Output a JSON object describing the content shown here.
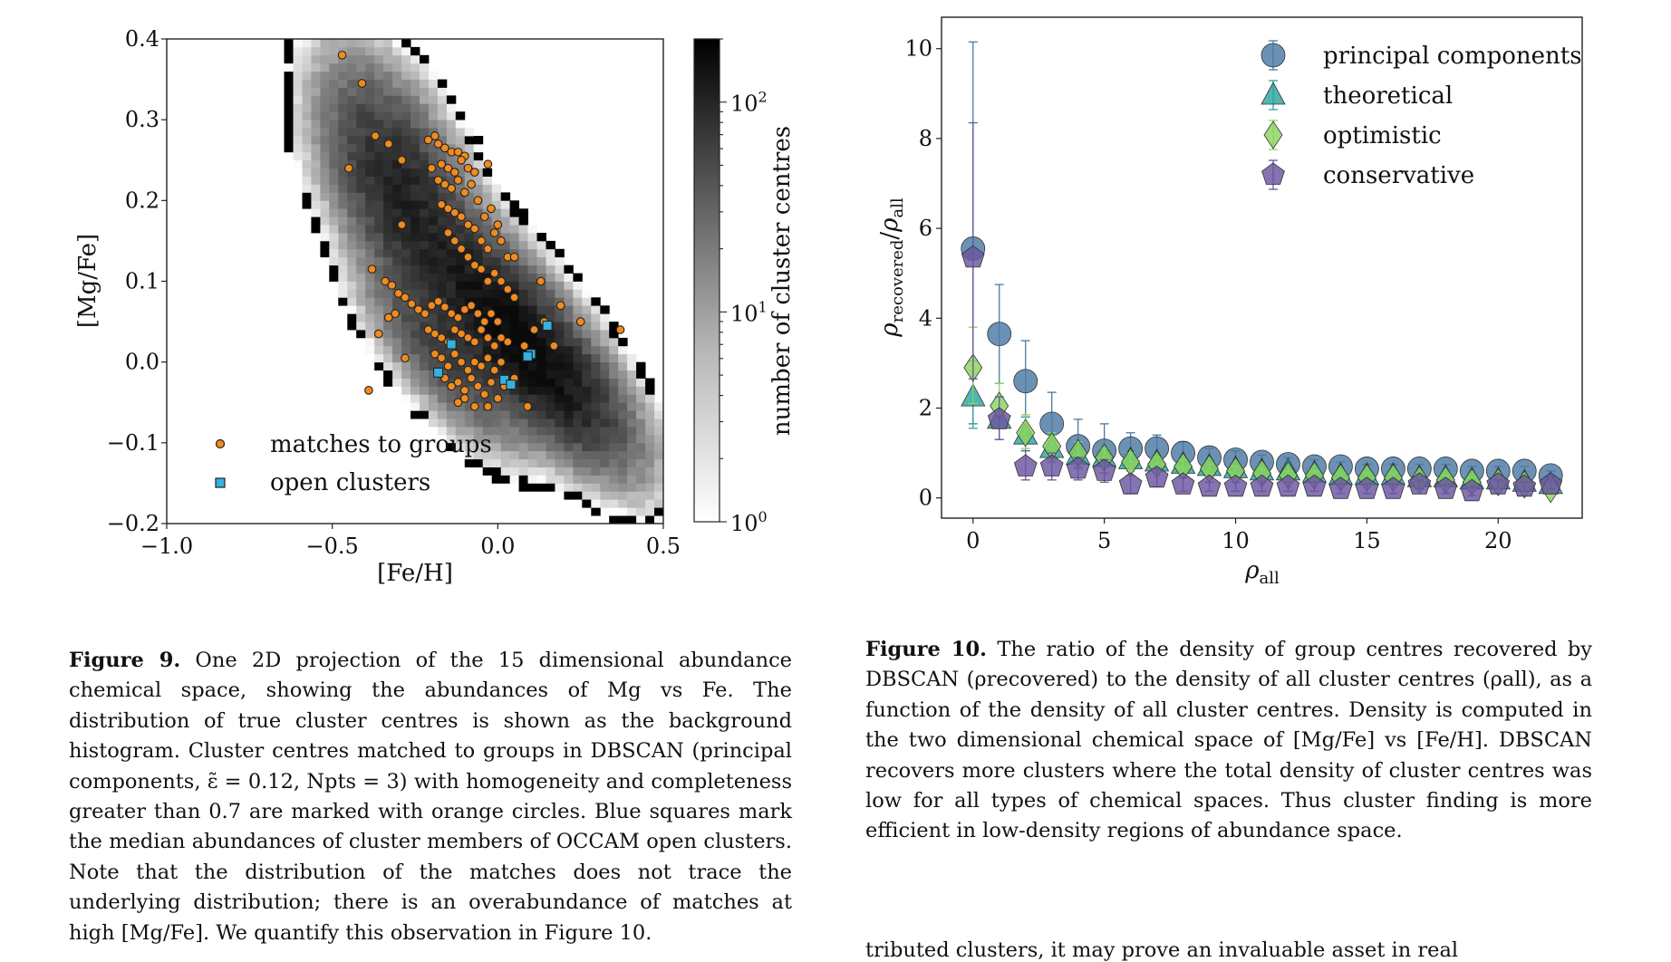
{
  "figure9": {
    "caption_label": "Figure 9.",
    "caption_text": "One 2D projection of the 15 dimensional abundance chemical space, showing the abundances of Mg vs Fe. The distribution of true cluster centres is shown as the background histogram. Cluster centres matched to groups in DBSCAN (principal components, ε̃ = 0.12, Npts = 3) with homogeneity and completeness greater than 0.7 are marked with orange circles. Blue squares mark the median abundances of cluster members of OCCAM open clusters. Note that the distribution of the matches does not trace the underlying distribution; there is an overabundance of matches at high [Mg/Fe]. We quantify this observation in Figure 10.",
    "chart_data": {
      "type": "scatter",
      "xlabel": "[Fe/H]",
      "ylabel": "[Mg/Fe]",
      "xlim": [
        -1.0,
        0.5
      ],
      "ylim": [
        -0.2,
        0.4
      ],
      "xticks": [
        "−1.0",
        "−0.5",
        "0.0",
        "0.5"
      ],
      "yticks": [
        "0.4",
        "0.3",
        "0.2",
        "0.1",
        "0.0",
        "−0.1",
        "−0.2"
      ],
      "colorbar": {
        "label": "number of cluster centres",
        "scale": "log",
        "range": [
          1,
          200
        ],
        "ticks": [
          {
            "base": "10",
            "exp": "0",
            "value": 1
          },
          {
            "base": "10",
            "exp": "1",
            "value": 10
          },
          {
            "base": "10",
            "exp": "2",
            "value": 100
          }
        ]
      },
      "legend": {
        "placement": "lower-left",
        "entries": [
          "matches to groups",
          "open clusters"
        ]
      },
      "histogram_components": [
        {
          "cx": -0.3,
          "cy": 0.22,
          "sx": 0.11,
          "sy": 0.06,
          "peak": 90
        },
        {
          "cx": -0.05,
          "cy": 0.09,
          "sx": 0.16,
          "sy": 0.045,
          "peak": 70
        },
        {
          "cx": 0.1,
          "cy": 0.01,
          "sx": 0.14,
          "sy": 0.04,
          "peak": 190
        },
        {
          "cx": -0.15,
          "cy": 0.015,
          "sx": 0.12,
          "sy": 0.04,
          "peak": 50
        }
      ],
      "series": [
        {
          "name": "matches to groups",
          "color": "#f28a1e",
          "points": [
            [
              -0.47,
              0.38
            ],
            [
              -0.41,
              0.345
            ],
            [
              -0.37,
              0.28
            ],
            [
              -0.33,
              0.27
            ],
            [
              -0.29,
              0.25
            ],
            [
              -0.45,
              0.24
            ],
            [
              -0.21,
              0.275
            ],
            [
              -0.19,
              0.28
            ],
            [
              -0.18,
              0.27
            ],
            [
              -0.16,
              0.265
            ],
            [
              -0.14,
              0.26
            ],
            [
              -0.12,
              0.26
            ],
            [
              -0.1,
              0.255
            ],
            [
              -0.2,
              0.24
            ],
            [
              -0.17,
              0.245
            ],
            [
              -0.15,
              0.24
            ],
            [
              -0.13,
              0.235
            ],
            [
              -0.11,
              0.25
            ],
            [
              -0.09,
              0.24
            ],
            [
              -0.07,
              0.235
            ],
            [
              -0.03,
              0.245
            ],
            [
              -0.18,
              0.225
            ],
            [
              -0.16,
              0.22
            ],
            [
              -0.14,
              0.215
            ],
            [
              -0.12,
              0.225
            ],
            [
              -0.1,
              0.21
            ],
            [
              -0.08,
              0.22
            ],
            [
              -0.06,
              0.2
            ],
            [
              -0.04,
              0.18
            ],
            [
              -0.02,
              0.19
            ],
            [
              0.0,
              0.17
            ],
            [
              -0.17,
              0.195
            ],
            [
              -0.15,
              0.19
            ],
            [
              -0.13,
              0.185
            ],
            [
              -0.11,
              0.18
            ],
            [
              -0.09,
              0.17
            ],
            [
              -0.07,
              0.165
            ],
            [
              -0.05,
              0.15
            ],
            [
              -0.03,
              0.14
            ],
            [
              -0.01,
              0.16
            ],
            [
              0.01,
              0.15
            ],
            [
              0.03,
              0.13
            ],
            [
              -0.15,
              0.16
            ],
            [
              -0.13,
              0.15
            ],
            [
              -0.11,
              0.14
            ],
            [
              -0.09,
              0.13
            ],
            [
              -0.07,
              0.12
            ],
            [
              -0.05,
              0.115
            ],
            [
              -0.03,
              0.1
            ],
            [
              -0.01,
              0.11
            ],
            [
              0.01,
              0.1
            ],
            [
              0.03,
              0.09
            ],
            [
              0.05,
              0.08
            ],
            [
              -0.29,
              0.17
            ],
            [
              -0.38,
              0.115
            ],
            [
              -0.34,
              0.1
            ],
            [
              -0.32,
              0.095
            ],
            [
              -0.3,
              0.085
            ],
            [
              -0.28,
              0.08
            ],
            [
              -0.26,
              0.072
            ],
            [
              -0.31,
              0.06
            ],
            [
              -0.33,
              0.055
            ],
            [
              -0.24,
              0.065
            ],
            [
              -0.22,
              0.06
            ],
            [
              -0.2,
              0.07
            ],
            [
              -0.18,
              0.075
            ],
            [
              -0.16,
              0.068
            ],
            [
              -0.14,
              0.06
            ],
            [
              -0.12,
              0.055
            ],
            [
              -0.1,
              0.065
            ],
            [
              -0.08,
              0.07
            ],
            [
              -0.06,
              0.06
            ],
            [
              -0.04,
              0.05
            ],
            [
              -0.02,
              0.06
            ],
            [
              0.0,
              0.05
            ],
            [
              -0.21,
              0.04
            ],
            [
              -0.19,
              0.035
            ],
            [
              -0.17,
              0.03
            ],
            [
              -0.15,
              0.025
            ],
            [
              -0.13,
              0.04
            ],
            [
              -0.11,
              0.035
            ],
            [
              -0.09,
              0.03
            ],
            [
              -0.07,
              0.025
            ],
            [
              -0.05,
              0.04
            ],
            [
              -0.03,
              0.03
            ],
            [
              -0.01,
              0.02
            ],
            [
              0.01,
              0.03
            ],
            [
              0.03,
              0.025
            ],
            [
              -0.19,
              0.01
            ],
            [
              -0.17,
              0.005
            ],
            [
              -0.15,
              -0.005
            ],
            [
              -0.13,
              0.01
            ],
            [
              -0.11,
              0.0
            ],
            [
              -0.09,
              -0.01
            ],
            [
              -0.07,
              0.0
            ],
            [
              -0.05,
              -0.005
            ],
            [
              -0.03,
              0.005
            ],
            [
              -0.01,
              -0.01
            ],
            [
              0.01,
              0.0
            ],
            [
              -0.16,
              -0.02
            ],
            [
              -0.14,
              -0.03
            ],
            [
              -0.12,
              -0.025
            ],
            [
              -0.1,
              -0.035
            ],
            [
              -0.08,
              -0.02
            ],
            [
              -0.06,
              -0.03
            ],
            [
              -0.04,
              -0.04
            ],
            [
              -0.02,
              -0.025
            ],
            [
              0.0,
              -0.045
            ],
            [
              -0.12,
              -0.05
            ],
            [
              -0.1,
              -0.045
            ],
            [
              -0.07,
              -0.055
            ],
            [
              -0.03,
              -0.055
            ],
            [
              0.02,
              -0.03
            ],
            [
              0.05,
              -0.02
            ],
            [
              0.08,
              0.02
            ],
            [
              0.11,
              0.04
            ],
            [
              0.14,
              0.05
            ],
            [
              0.19,
              0.07
            ],
            [
              0.25,
              0.05
            ],
            [
              0.37,
              0.04
            ],
            [
              0.13,
              0.1
            ],
            [
              0.05,
              0.13
            ],
            [
              -0.28,
              0.005
            ],
            [
              -0.39,
              -0.035
            ],
            [
              -0.36,
              0.035
            ],
            [
              0.09,
              -0.055
            ],
            [
              0.17,
              0.02
            ]
          ]
        },
        {
          "name": "open clusters",
          "color": "#35b0e0",
          "points": [
            [
              0.15,
              0.045
            ],
            [
              -0.14,
              0.022
            ],
            [
              0.1,
              0.01
            ],
            [
              0.09,
              0.007
            ],
            [
              -0.18,
              -0.013
            ],
            [
              0.02,
              -0.022
            ],
            [
              0.04,
              -0.028
            ]
          ]
        }
      ]
    }
  },
  "figure10": {
    "caption_label": "Figure 10.",
    "caption_text": "The ratio of the density of group centres recovered by DBSCAN (ρrecovered) to the density of all cluster centres (ρall), as a function of the density of all cluster centres. Density is computed in the two dimensional chemical space of [Mg/Fe] vs [Fe/H]. DBSCAN recovers more clusters where the total density of cluster centres was low for all types of chemical spaces. Thus cluster finding is more efficient in low-density regions of abundance space.",
    "chart_data": {
      "type": "scatter",
      "xlabel_sym": "ρ",
      "xlabel_sub": "all",
      "ylabel_sym1": "ρ",
      "ylabel_sub1": "recovered",
      "ylabel_sym2": "ρ",
      "ylabel_sub2": "all",
      "xlim": [
        -1.2,
        23.2
      ],
      "ylim": [
        -0.45,
        10.7
      ],
      "xticks": [
        0,
        5,
        10,
        15,
        20
      ],
      "yticks": [
        0,
        2,
        4,
        6,
        8,
        10
      ],
      "legend": {
        "placement": "top-right"
      },
      "x": [
        0,
        1,
        2,
        3,
        4,
        5,
        6,
        7,
        8,
        9,
        10,
        11,
        12,
        13,
        14,
        15,
        16,
        17,
        18,
        19,
        20,
        21,
        22
      ],
      "series": [
        {
          "name": "principal components",
          "marker": "circle",
          "color": "#4a7aa3",
          "values": [
            5.55,
            3.65,
            2.6,
            1.65,
            1.15,
            1.05,
            1.1,
            1.1,
            1.0,
            0.9,
            0.85,
            0.8,
            0.75,
            0.7,
            0.7,
            0.65,
            0.65,
            0.65,
            0.65,
            0.6,
            0.6,
            0.6,
            0.5
          ],
          "err_upper": [
            4.6,
            1.1,
            0.9,
            0.7,
            0.6,
            0.6,
            0.35,
            0.3,
            0.25,
            0.2,
            0.2,
            0.15,
            0.15,
            0.15,
            0.1,
            0.1,
            0.1,
            0.1,
            0.1,
            0.1,
            0.1,
            0.1,
            0.1
          ],
          "err_lower": [
            3.9,
            1.1,
            0.8,
            0.6,
            0.5,
            0.5,
            0.35,
            0.3,
            0.25,
            0.2,
            0.2,
            0.15,
            0.15,
            0.15,
            0.1,
            0.1,
            0.1,
            0.1,
            0.1,
            0.1,
            0.1,
            0.1,
            0.1
          ]
        },
        {
          "name": "theoretical",
          "marker": "triangle",
          "color": "#2ba5a0",
          "values": [
            2.25,
            1.75,
            1.4,
            1.1,
            0.95,
            0.9,
            0.85,
            0.8,
            0.75,
            0.7,
            0.65,
            0.6,
            0.6,
            0.55,
            0.5,
            0.5,
            0.5,
            0.45,
            0.45,
            0.4,
            0.4,
            0.35,
            0.3
          ],
          "err_upper": [
            0.8,
            0.5,
            0.4,
            0.3,
            0.25,
            0.2,
            0.2,
            0.15,
            0.15,
            0.15,
            0.1,
            0.1,
            0.1,
            0.1,
            0.1,
            0.1,
            0.1,
            0.1,
            0.1,
            0.1,
            0.1,
            0.1,
            0.1
          ],
          "err_lower": [
            0.7,
            0.45,
            0.35,
            0.3,
            0.25,
            0.2,
            0.2,
            0.15,
            0.15,
            0.15,
            0.1,
            0.1,
            0.1,
            0.1,
            0.1,
            0.1,
            0.1,
            0.1,
            0.1,
            0.1,
            0.1,
            0.1,
            0.1
          ]
        },
        {
          "name": "optimistic",
          "marker": "diamond",
          "color": "#8ad45e",
          "values": [
            2.9,
            2.05,
            1.45,
            1.15,
            1.0,
            0.9,
            0.8,
            0.75,
            0.7,
            0.65,
            0.6,
            0.55,
            0.5,
            0.5,
            0.45,
            0.45,
            0.45,
            0.4,
            0.4,
            0.35,
            0.35,
            0.3,
            0.2
          ],
          "err_upper": [
            0.9,
            0.5,
            0.4,
            0.3,
            0.25,
            0.2,
            0.2,
            0.15,
            0.15,
            0.1,
            0.1,
            0.1,
            0.1,
            0.1,
            0.1,
            0.1,
            0.1,
            0.1,
            0.1,
            0.1,
            0.1,
            0.1,
            0.1
          ],
          "err_lower": [
            0.8,
            0.45,
            0.35,
            0.3,
            0.25,
            0.2,
            0.2,
            0.15,
            0.15,
            0.1,
            0.1,
            0.1,
            0.1,
            0.1,
            0.1,
            0.1,
            0.1,
            0.1,
            0.1,
            0.1,
            0.1,
            0.1,
            0.1
          ]
        },
        {
          "name": "conservative",
          "marker": "pentagon",
          "color": "#6a55a0",
          "values": [
            5.35,
            1.75,
            0.7,
            0.7,
            0.65,
            0.6,
            0.3,
            0.45,
            0.3,
            0.25,
            0.25,
            0.25,
            0.25,
            0.25,
            0.2,
            0.2,
            0.2,
            0.3,
            0.2,
            0.15,
            0.3,
            0.25,
            0.3
          ],
          "err_upper": [
            3.0,
            0.5,
            0.35,
            0.3,
            0.25,
            0.25,
            0.2,
            0.2,
            0.15,
            0.1,
            0.1,
            0.1,
            0.1,
            0.1,
            0.1,
            0.1,
            0.1,
            0.1,
            0.1,
            0.1,
            0.1,
            0.1,
            0.1
          ],
          "err_lower": [
            2.7,
            0.45,
            0.3,
            0.3,
            0.25,
            0.25,
            0.2,
            0.2,
            0.15,
            0.1,
            0.1,
            0.1,
            0.1,
            0.1,
            0.1,
            0.1,
            0.1,
            0.1,
            0.1,
            0.1,
            0.1,
            0.1,
            0.1
          ]
        }
      ]
    }
  },
  "next_column_fragment": "tributed clusters, it may prove an invaluable asset in real"
}
